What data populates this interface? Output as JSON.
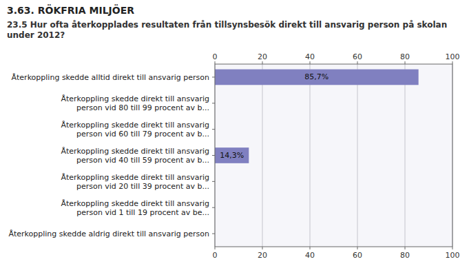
{
  "chart_data": {
    "type": "bar",
    "orientation": "horizontal",
    "title": "3.63. RÖKFRIA MILJÖER",
    "subtitle": "23.5 Hur ofta återkopplades resultaten från tillsynsbesök direkt till ansvarig person på skolan under 2012?",
    "categories": [
      "Återkoppling skedde alltid direkt till ansvarig person",
      "Återkoppling skedde direkt till ansvarig\nperson vid 80 till 99 procent av b...",
      "Återkoppling skedde direkt till ansvarig\nperson vid 60 till 79 procent av b...",
      "Återkoppling skedde direkt till ansvarig\nperson vid 40 till 59 procent av b...",
      "Återkoppling skedde direkt till ansvarig\nperson vid 20 till 39 procent av b...",
      "Återkoppling skedde direkt till ansvarig\nperson vid 1 till 19 procent av be...",
      "Återkoppling skedde aldrig direkt till ansvarig person"
    ],
    "values": [
      85.7,
      0,
      0,
      14.3,
      0,
      0,
      0
    ],
    "value_labels": [
      "85,7%",
      null,
      null,
      "14,3%",
      null,
      null,
      null
    ],
    "data_labels": true,
    "color": "#8080c0",
    "xlim": [
      0,
      100
    ],
    "xticks": [
      0,
      20,
      40,
      60,
      80,
      100
    ],
    "grid": true
  }
}
